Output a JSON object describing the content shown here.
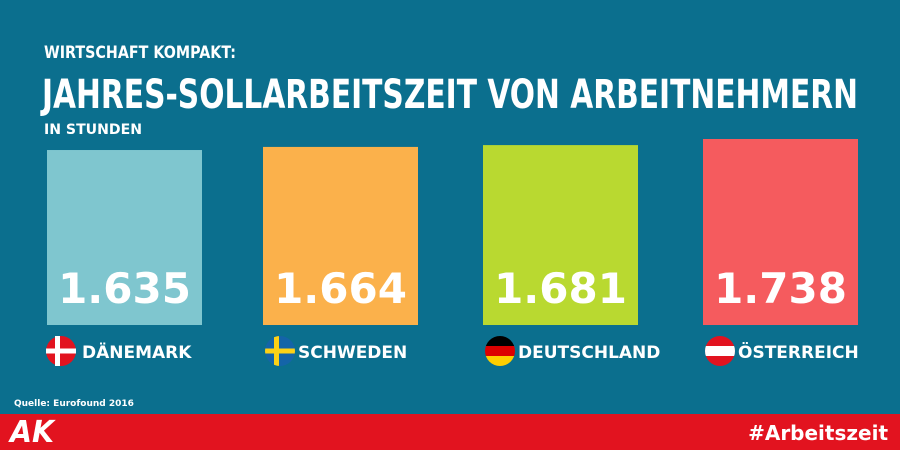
{
  "chart_data": {
    "type": "bar",
    "kicker": "WIRTSCHAFT KOMPAKT:",
    "title": "JAHRES-SOLLARBEITSZEIT VON ARBEITNEHMERN",
    "subtitle": "IN STUNDEN",
    "categories": [
      "DÄNEMARK",
      "SCHWEDEN",
      "DEUTSCHLAND",
      "ÖSTERREICH"
    ],
    "values": [
      1635,
      1664,
      1681,
      1738
    ],
    "value_labels": [
      "1.635",
      "1.664",
      "1.681",
      "1.738"
    ],
    "colors": [
      "#7fc6cf",
      "#fbb14b",
      "#b9d930",
      "#f55b5e"
    ],
    "source": "Quelle: Eurofound 2016",
    "logo": "AK",
    "hashtag": "#Arbeitszeit"
  }
}
